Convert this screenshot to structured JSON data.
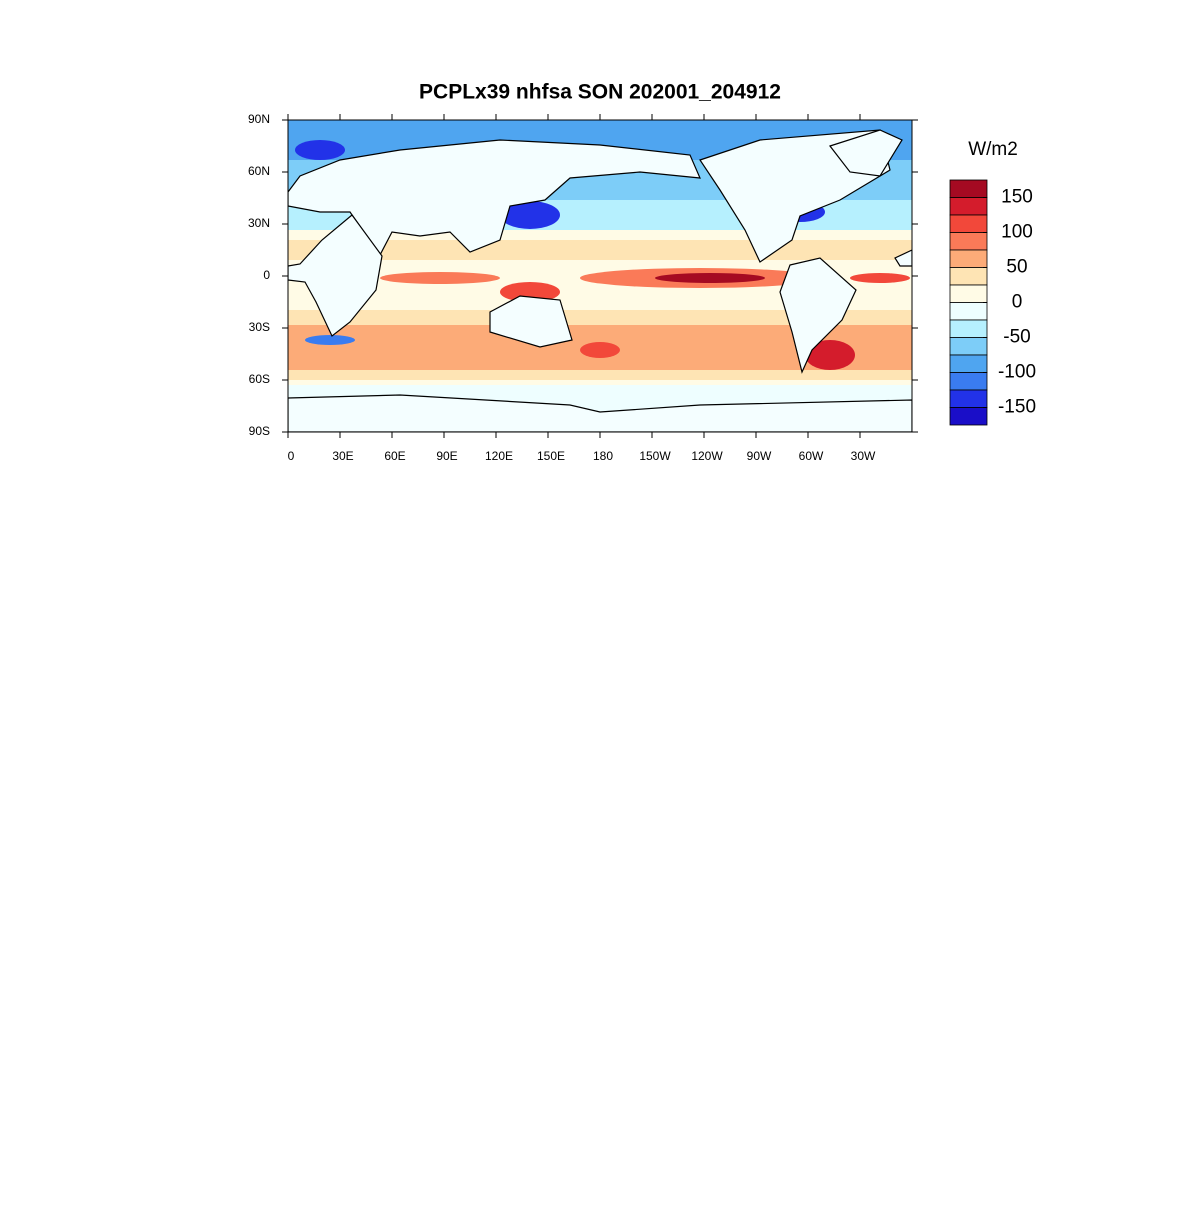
{
  "title": "PCPLx39 nhfsa SON 202001_204912",
  "map": {
    "xlim": [
      0,
      360
    ],
    "ylim": [
      -90,
      90
    ],
    "lat_ticks": [
      {
        "value": 90,
        "label": "90N"
      },
      {
        "value": 60,
        "label": "60N"
      },
      {
        "value": 30,
        "label": "30N"
      },
      0,
      {
        "value": -30,
        "label": "30S"
      },
      {
        "value": -60,
        "label": "60S"
      },
      {
        "value": -90,
        "label": "90S"
      }
    ],
    "lon_ticks": [
      0,
      {
        "value": 30,
        "label": "30E"
      },
      {
        "value": 60,
        "label": "60E"
      },
      {
        "value": 90,
        "label": "90E"
      },
      {
        "value": 120,
        "label": "120E"
      },
      {
        "value": 150,
        "label": "150E"
      },
      180,
      {
        "value": 210,
        "label": "150W"
      },
      {
        "value": 240,
        "label": "120W"
      },
      {
        "value": 270,
        "label": "90W"
      },
      {
        "value": 300,
        "label": "60W"
      },
      {
        "value": 330,
        "label": "30W"
      }
    ]
  },
  "colorbar": {
    "title": "W/m2",
    "lim": [
      -175,
      175
    ],
    "ticks": [
      150,
      100,
      50,
      0,
      -50,
      -100,
      -150
    ],
    "colors": [
      "#a50a22",
      "#d41c2c",
      "#f2483a",
      "#fa7a58",
      "#fcab78",
      "#fee4b4",
      "#fffbe6",
      "#eefeff",
      "#b6f0fe",
      "#7dcdf8",
      "#4fa5f0",
      "#3a7cf0",
      "#2232e8",
      "#1a0ec8"
    ]
  }
}
